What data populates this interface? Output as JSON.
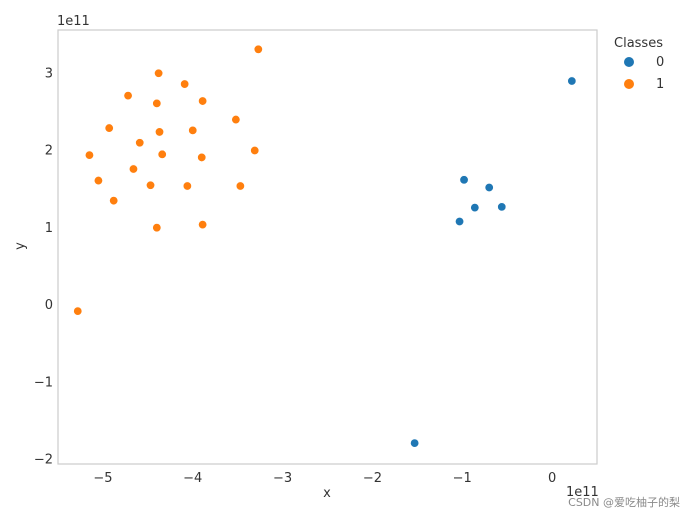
{
  "chart_data": {
    "type": "scatter",
    "xlabel": "x",
    "ylabel": "y",
    "x_offset_label": "1e11",
    "y_offset_label": "1e11",
    "xlim": [
      -5.5,
      0.5
    ],
    "ylim": [
      -2.07,
      3.55
    ],
    "x_ticks": [
      -5,
      -4,
      -3,
      -2,
      -1,
      0
    ],
    "x_tick_labels": [
      "−5",
      "−4",
      "−3",
      "−2",
      "−1",
      "0"
    ],
    "y_ticks": [
      -2,
      -1,
      0,
      1,
      2,
      3
    ],
    "y_tick_labels": [
      "−2",
      "−1",
      "0",
      "1",
      "2",
      "3"
    ],
    "grid": false,
    "legend": {
      "title": "Classes",
      "placement": "outside-right-top"
    },
    "series": [
      {
        "name": "0",
        "color": "#1f77b4",
        "points": [
          [
            0.22,
            2.89
          ],
          [
            -0.98,
            1.61
          ],
          [
            -0.7,
            1.51
          ],
          [
            -0.86,
            1.25
          ],
          [
            -0.56,
            1.26
          ],
          [
            -1.03,
            1.07
          ],
          [
            -1.53,
            -1.8
          ]
        ]
      },
      {
        "name": "1",
        "color": "#ff7f0e",
        "points": [
          [
            -3.27,
            3.3
          ],
          [
            -4.38,
            2.99
          ],
          [
            -4.09,
            2.85
          ],
          [
            -4.72,
            2.7
          ],
          [
            -4.4,
            2.6
          ],
          [
            -3.89,
            2.63
          ],
          [
            -3.52,
            2.39
          ],
          [
            -4.93,
            2.28
          ],
          [
            -4.37,
            2.23
          ],
          [
            -4.0,
            2.25
          ],
          [
            -4.59,
            2.09
          ],
          [
            -3.31,
            1.99
          ],
          [
            -5.15,
            1.93
          ],
          [
            -4.34,
            1.94
          ],
          [
            -3.9,
            1.9
          ],
          [
            -4.66,
            1.75
          ],
          [
            -5.05,
            1.6
          ],
          [
            -4.47,
            1.54
          ],
          [
            -4.06,
            1.53
          ],
          [
            -3.47,
            1.53
          ],
          [
            -4.88,
            1.34
          ],
          [
            -3.89,
            1.03
          ],
          [
            -4.4,
            0.99
          ],
          [
            -5.28,
            -0.09
          ]
        ]
      }
    ]
  },
  "watermark": "CSDN @爱吃柚子的梨"
}
